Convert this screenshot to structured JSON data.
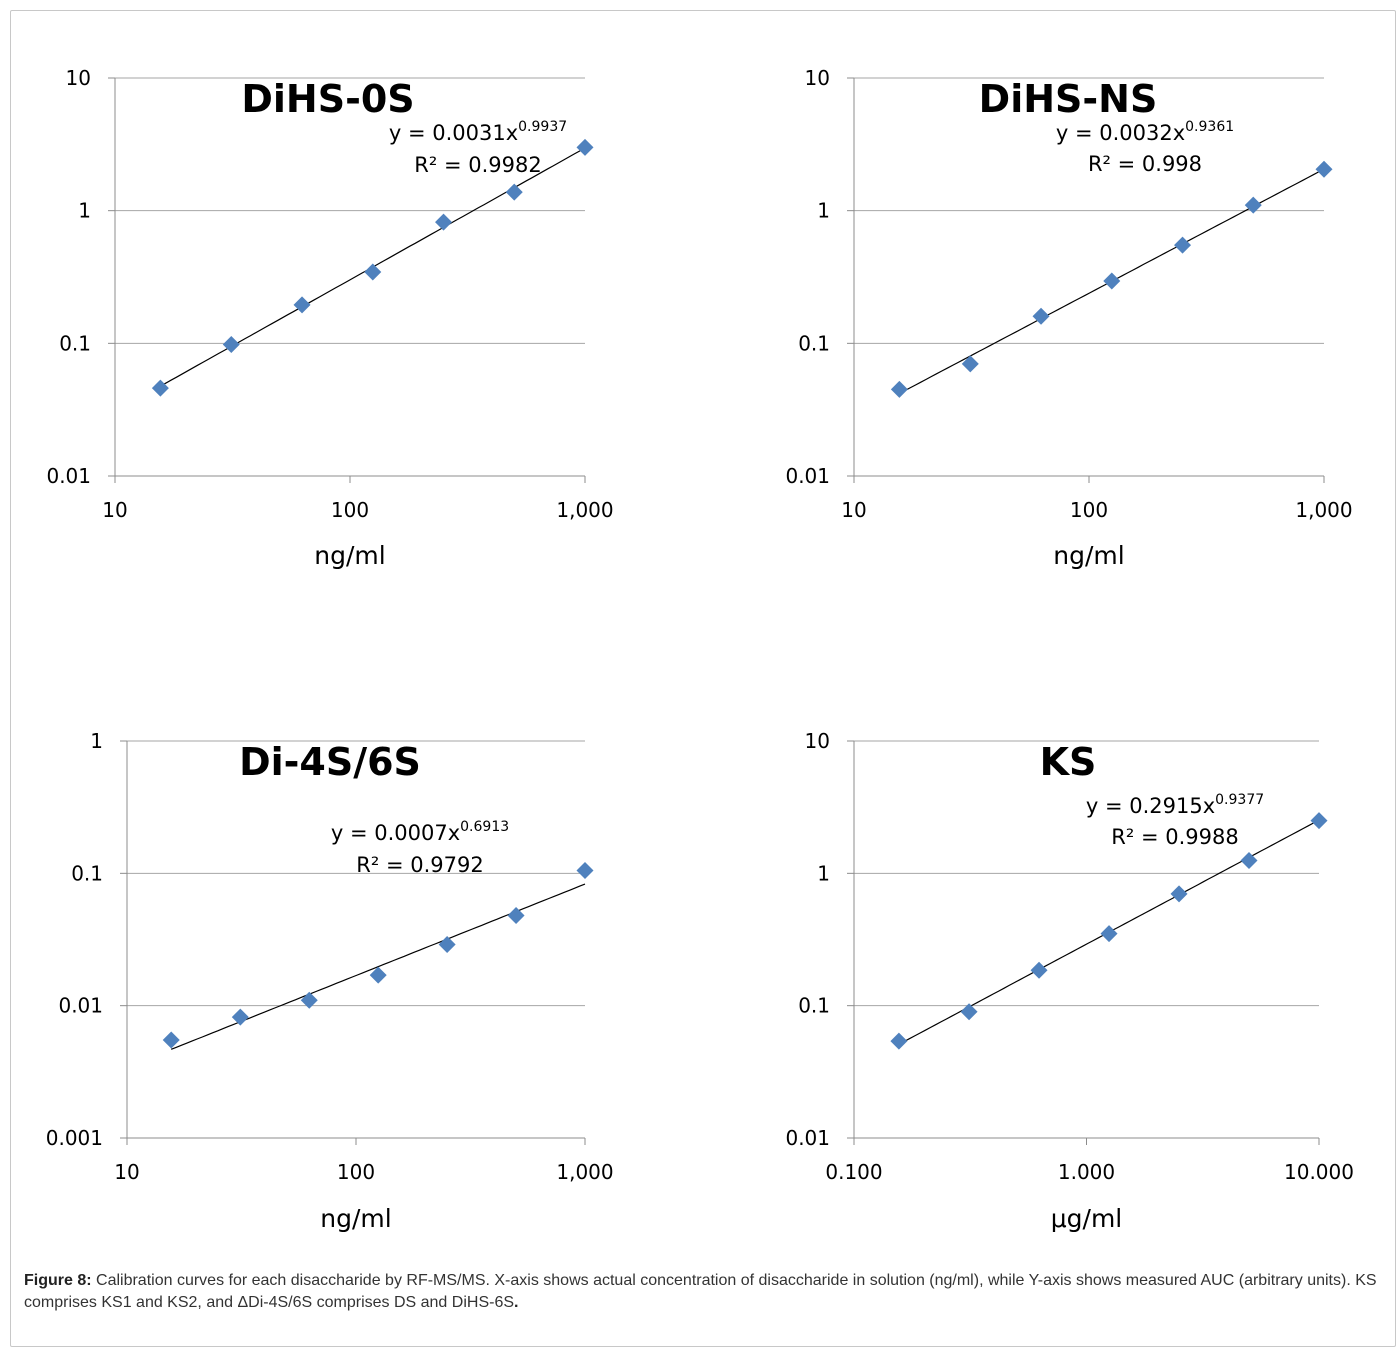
{
  "caption": {
    "label": "Figure 8:",
    "text": "Calibration curves for each disaccharide by RF-MS/MS. X-axis shows actual concentration of disaccharide in solution (ng/ml), while Y-axis shows measured AUC (arbitrary units).  KS comprises KS1 and KS2, and ΔDi-4S/6S comprises DS and DiHS-6S",
    "end": "."
  },
  "colors": {
    "marker": "#4F81BD",
    "gridline": "#a6a6a6",
    "trendline": "#000000"
  },
  "chart_data": [
    {
      "type": "scatter",
      "title": "DiHS-0S",
      "xlabel": "ng/ml",
      "ylabel": "",
      "xscale": "log",
      "yscale": "log",
      "xlim": [
        10,
        1000
      ],
      "ylim": [
        0.01,
        10
      ],
      "xticks": [
        "10",
        "100",
        "1,000"
      ],
      "yticks": [
        "0.01",
        "0.1",
        "1",
        "10"
      ],
      "grid": "horizontal",
      "x": [
        15.6,
        31.25,
        62.5,
        125,
        250,
        500,
        1000
      ],
      "y": [
        0.046,
        0.098,
        0.195,
        0.345,
        0.82,
        1.38,
        3.0
      ],
      "trendline": {
        "type": "power",
        "a": 0.0031,
        "b": 0.9937,
        "from": 15.6,
        "to": 1000
      },
      "equation": {
        "base": "y = 0.0031x",
        "exponent": "0.9937",
        "r2": "R² = 0.9982"
      }
    },
    {
      "type": "scatter",
      "title": "DiHS-NS",
      "xlabel": "ng/ml",
      "ylabel": "",
      "xscale": "log",
      "yscale": "log",
      "xlim": [
        10,
        1000
      ],
      "ylim": [
        0.01,
        10
      ],
      "xticks": [
        "10",
        "100",
        "1,000"
      ],
      "yticks": [
        "0.01",
        "0.1",
        "1",
        "10"
      ],
      "grid": "horizontal",
      "x": [
        15.6,
        31.25,
        62.5,
        125,
        250,
        500,
        1000
      ],
      "y": [
        0.045,
        0.07,
        0.16,
        0.295,
        0.55,
        1.1,
        2.05
      ],
      "trendline": {
        "type": "power",
        "a": 0.0032,
        "b": 0.9361,
        "from": 15.6,
        "to": 1000
      },
      "equation": {
        "base": "y = 0.0032x",
        "exponent": "0.9361",
        "r2": "R² = 0.998"
      }
    },
    {
      "type": "scatter",
      "title": "Di-4S/6S",
      "xlabel": "ng/ml",
      "ylabel": "",
      "xscale": "log",
      "yscale": "log",
      "xlim": [
        10,
        1000
      ],
      "ylim": [
        0.001,
        1
      ],
      "xticks": [
        "10",
        "100",
        "1,000"
      ],
      "yticks": [
        "0.001",
        "0.01",
        "0.1",
        "1"
      ],
      "grid": "horizontal",
      "x": [
        15.6,
        31.25,
        62.5,
        125,
        250,
        500,
        1000
      ],
      "y": [
        0.0055,
        0.0082,
        0.011,
        0.017,
        0.029,
        0.048,
        0.105
      ],
      "trendline": {
        "type": "power",
        "a": 0.0007,
        "b": 0.6913,
        "from": 15.6,
        "to": 1000
      },
      "equation": {
        "base": "y = 0.0007x",
        "exponent": "0.6913",
        "r2": "R² = 0.9792"
      }
    },
    {
      "type": "scatter",
      "title": "KS",
      "xlabel": "μg/ml",
      "ylabel": "",
      "xscale": "log",
      "yscale": "log",
      "xlim": [
        0.1,
        10
      ],
      "ylim": [
        0.01,
        10
      ],
      "xticks": [
        "0.100",
        "1.000",
        "10.000"
      ],
      "yticks": [
        "0.01",
        "0.1",
        "1",
        "10"
      ],
      "grid": "horizontal",
      "x": [
        0.156,
        0.3125,
        0.625,
        1.25,
        2.5,
        5.0,
        10.0
      ],
      "y": [
        0.054,
        0.09,
        0.185,
        0.35,
        0.7,
        1.25,
        2.5
      ],
      "trendline": {
        "type": "power",
        "a": 0.2915,
        "b": 0.9377,
        "from": 0.156,
        "to": 10
      },
      "equation": {
        "base": "y = 0.2915x",
        "exponent": "0.9377",
        "r2": "R² = 0.9988"
      }
    }
  ]
}
